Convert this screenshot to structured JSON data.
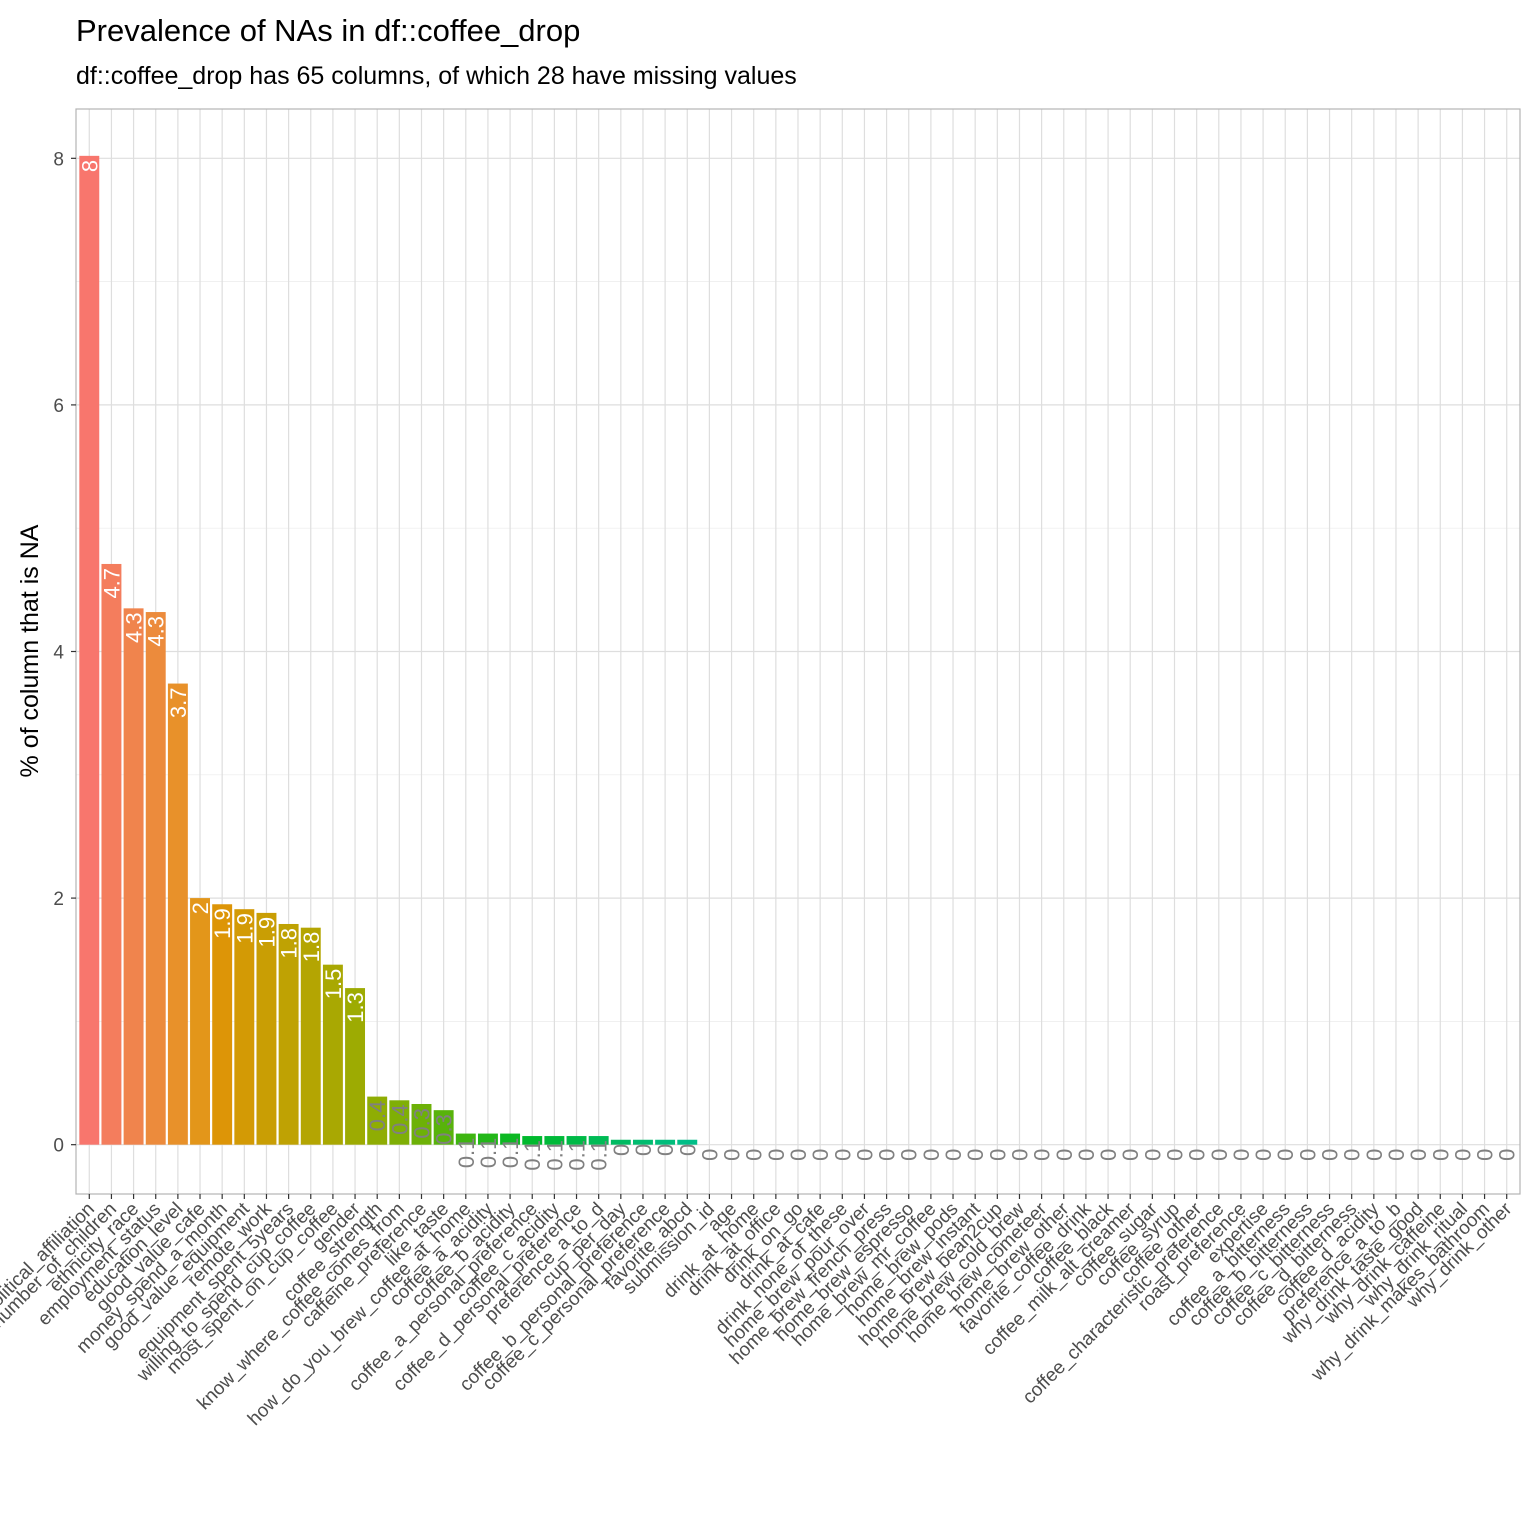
{
  "chart_data": {
    "type": "bar",
    "title": "Prevalence of NAs in df::coffee_drop",
    "subtitle": "df::coffee_drop has 65 columns, of which 28 have missing values",
    "xlabel": "",
    "ylabel": "% of column that is NA",
    "ylim": [
      -0.4,
      8.4
    ],
    "yticks": [
      0,
      2,
      4,
      6,
      8
    ],
    "grid": true,
    "legend": "none",
    "label_color_inside": "#ffffff",
    "label_color_outside": "#808080",
    "categories": [
      "political_affiliation",
      "number_of_children",
      "ethnicity_race",
      "employment_status",
      "education_level",
      "good_value_cafe",
      "money_spend_a_month",
      "good_value_equipment",
      "remote_work",
      "equipment_spent_5years",
      "willing_to_spend_cup_coffee",
      "most_spent_on_cup_coffee",
      "gender",
      "coffee_strength",
      "know_where_coffee_comes_from",
      "caffeine_preference",
      "like_taste",
      "how_do_you_brew_coffee_at_home",
      "coffee_a_acidity",
      "coffee_b_acidity",
      "coffee_a_personal_preference",
      "coffee_c_acidity",
      "coffee_d_personal_preference",
      "preference_a_to_d",
      "cup_per_day",
      "coffee_b_personal_preference",
      "coffee_c_personal_preference",
      "favorite_abcd",
      "submission_id",
      "age",
      "drink_at_home",
      "drink_at_office",
      "drink_on_go",
      "drink_at_cafe",
      "drink_none_of_these",
      "home_brew_pour_over",
      "home_brew_french_press",
      "home_brew_espresso",
      "home_brew_mr_coffee",
      "home_brew_pods",
      "home_brew_instant",
      "home_brew_bean2cup",
      "home_brew_cold_brew",
      "home_brew_cometeer",
      "home_brew_other",
      "favorite_coffee_drink",
      "coffee_black",
      "coffee_milk_alt_creamer",
      "coffee_sugar",
      "coffee_syrup",
      "coffee_other",
      "coffee_characteristic_preference",
      "roast_preference",
      "expertise",
      "coffee_a_bitterness",
      "coffee_b_bitterness",
      "coffee_c_bitterness",
      "coffee_d_bitterness",
      "coffee_d_acidity",
      "preference_a_to_b",
      "why_drink_taste_good",
      "why_drink_caffeine",
      "why_drink_ritual",
      "why_drink_makes_bathroom",
      "why_drink_other"
    ],
    "values": [
      8.02,
      4.71,
      4.35,
      4.32,
      3.74,
      2.0,
      1.95,
      1.91,
      1.88,
      1.79,
      1.76,
      1.46,
      1.27,
      0.39,
      0.36,
      0.33,
      0.28,
      0.09,
      0.09,
      0.09,
      0.07,
      0.07,
      0.07,
      0.07,
      0.04,
      0.04,
      0.04,
      0.04,
      0,
      0,
      0,
      0,
      0,
      0,
      0,
      0,
      0,
      0,
      0,
      0,
      0,
      0,
      0,
      0,
      0,
      0,
      0,
      0,
      0,
      0,
      0,
      0,
      0,
      0,
      0,
      0,
      0,
      0,
      0,
      0,
      0,
      0,
      0,
      0,
      0
    ],
    "labels": [
      "8",
      "4.7",
      "4.3",
      "4.3",
      "3.7",
      "2",
      "1.9",
      "1.9",
      "1.9",
      "1.8",
      "1.8",
      "1.5",
      "1.3",
      "0.4",
      "0.4",
      "0.3",
      "0.3",
      "0.1",
      "0.1",
      "0.1",
      "0.1",
      "0.1",
      "0.1",
      "0.1",
      "0",
      "0",
      "0",
      "0",
      "0",
      "0",
      "0",
      "0",
      "0",
      "0",
      "0",
      "0",
      "0",
      "0",
      "0",
      "0",
      "0",
      "0",
      "0",
      "0",
      "0",
      "0",
      "0",
      "0",
      "0",
      "0",
      "0",
      "0",
      "0",
      "0",
      "0",
      "0",
      "0",
      "0",
      "0",
      "0",
      "0",
      "0",
      "0",
      "0",
      "0"
    ],
    "colors": [
      "#F8766D",
      "#F47D5D",
      "#F0844D",
      "#EC8B3C",
      "#E8912A",
      "#E3961A",
      "#DD9507",
      "#D39A05",
      "#C99E04",
      "#BFA203",
      "#B4A502",
      "#A9A802",
      "#9DAB02",
      "#8FAD03",
      "#7FAF05",
      "#6DB107",
      "#58B30B",
      "#3EB510",
      "#22B718",
      "#0CB822",
      "#00B92D",
      "#00BA39",
      "#00BA47",
      "#00BB55",
      "#00BB62",
      "#00BC6F",
      "#00BD7B",
      "#00BE87"
    ]
  }
}
